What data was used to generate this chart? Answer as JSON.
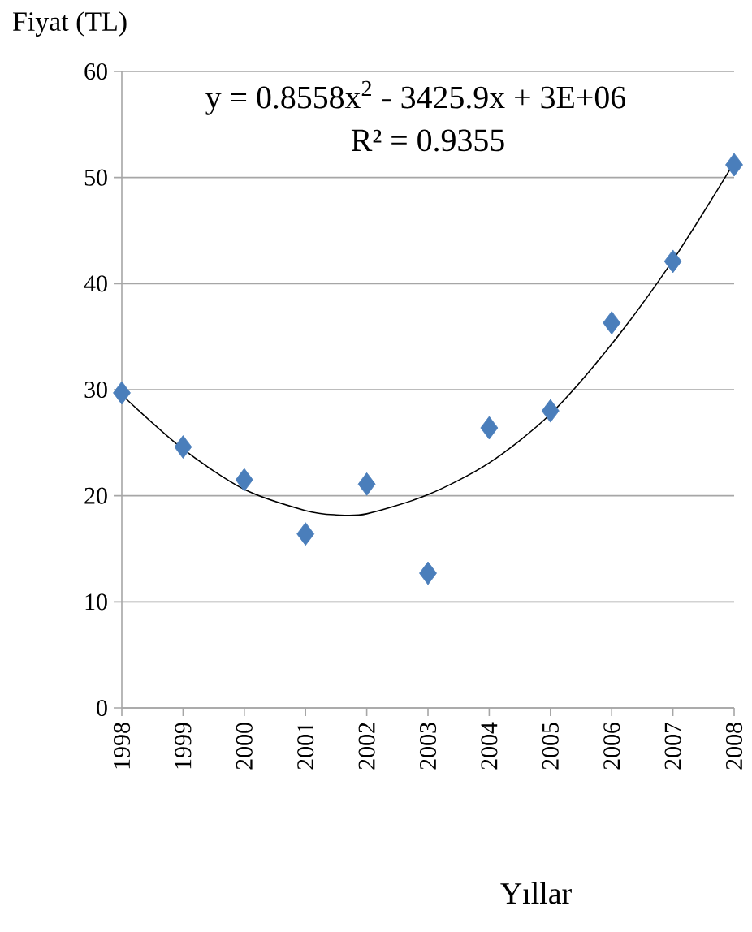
{
  "chart_data": {
    "type": "scatter",
    "xlabel": "Yıllar",
    "ylabel": "Fiyat (TL)",
    "x": [
      1998,
      1999,
      2000,
      2001,
      2002,
      2003,
      2004,
      2005,
      2006,
      2007,
      2008
    ],
    "series": [
      {
        "color": "#4a7ebb",
        "marker": "diamond",
        "values": [
          29.7,
          24.6,
          21.5,
          16.4,
          21.1,
          12.7,
          26.4,
          28.0,
          36.3,
          42.1,
          51.2
        ]
      },
      {
        "type": "line",
        "color": "#000000",
        "marker": "none",
        "x": [
          1998,
          1999,
          2000,
          2001,
          2001.5,
          2002,
          2003,
          2004,
          2005,
          2006,
          2007,
          2008
        ],
        "values": [
          29.5,
          24.4,
          20.6,
          18.6,
          18.2,
          18.3,
          20.1,
          23.1,
          27.7,
          34.3,
          42.2,
          51.4
        ]
      }
    ],
    "annotations": [
      "y = 0.8558x$^{2}$ - 3425.9x + 3E+06",
      "R² = 0.9355"
    ],
    "xlim": [
      1998,
      2008
    ],
    "xticks": [
      1998,
      1999,
      2000,
      2001,
      2002,
      2003,
      2004,
      2005,
      2006,
      2007,
      2008
    ],
    "ylim": [
      0,
      60
    ],
    "yticks": [
      0,
      10,
      20,
      30,
      40,
      50,
      60
    ],
    "grid": "y"
  }
}
